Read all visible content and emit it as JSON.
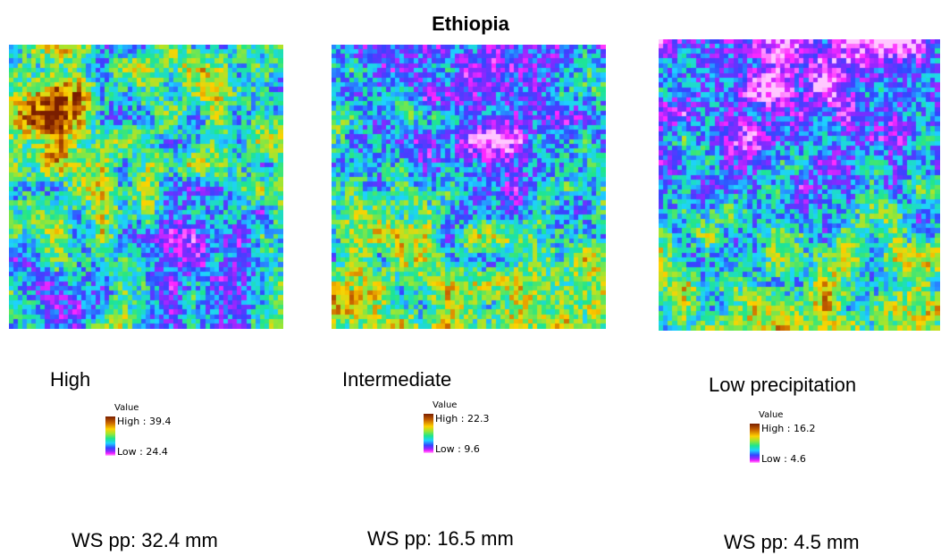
{
  "title": "Ethiopia",
  "legend_title": "Value",
  "chart_data": [
    {
      "type": "heatmap",
      "title": "High",
      "legend": {
        "high": "High : 39.4",
        "low": "Low : 24.4",
        "max": 39.4,
        "min": 24.4
      },
      "ws_label": "WS pp: 32.4 mm",
      "grid": [
        60,
        60
      ]
    },
    {
      "type": "heatmap",
      "title": "Intermediate",
      "legend": {
        "high": "High : 22.3",
        "low": "Low : 9.6",
        "max": 22.3,
        "min": 9.6
      },
      "ws_label": "WS pp: 16.5 mm",
      "grid": [
        60,
        60
      ]
    },
    {
      "type": "heatmap",
      "title": "Low precipitation",
      "legend": {
        "high": "High : 16.2",
        "low": "Low : 4.6",
        "max": 16.2,
        "min": 4.6
      },
      "ws_label": "WS pp: 4.5 mm",
      "grid": [
        60,
        60
      ]
    }
  ]
}
